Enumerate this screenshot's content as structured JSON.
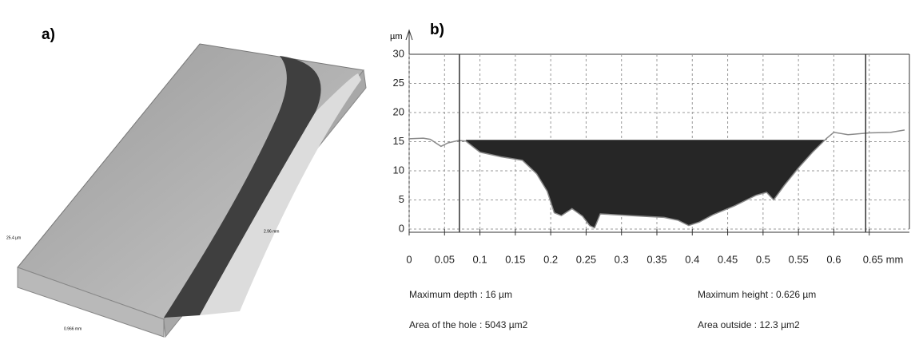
{
  "panel_a": {
    "label": "a)",
    "scale_labels": [
      "25.4 µm",
      "0.966 mm",
      "2.96 mm"
    ]
  },
  "chart_data": {
    "type": "line",
    "panel_label": "b)",
    "y_label": "µm",
    "series": [
      {
        "color": "#8a8a8a",
        "x": [
          0,
          0.02,
          0.03,
          0.045,
          0.055,
          0.07,
          0.08,
          0.1,
          0.13,
          0.16,
          0.18,
          0.195,
          0.205,
          0.215,
          0.23,
          0.245,
          0.255,
          0.262,
          0.27,
          0.3,
          0.33,
          0.36,
          0.38,
          0.395,
          0.41,
          0.43,
          0.46,
          0.49,
          0.505,
          0.515,
          0.53,
          0.55,
          0.57,
          0.59,
          0.6,
          0.62,
          0.65,
          0.68,
          0.7
        ],
        "values": [
          15.5,
          15.6,
          15.4,
          14.2,
          14.8,
          15.2,
          15.1,
          13.2,
          12.4,
          11.8,
          9.5,
          6.5,
          2.8,
          2.3,
          3.5,
          2.2,
          0.6,
          0.2,
          2.6,
          2.4,
          2.2,
          2,
          1.5,
          0.6,
          1.2,
          2.5,
          4,
          5.8,
          6.3,
          5,
          7.5,
          10.5,
          13.2,
          15.6,
          16.6,
          16.2,
          16.5,
          16.6,
          17
        ]
      }
    ],
    "hole_level": 15.3,
    "hole_range": [
      0.08,
      0.59
    ],
    "cursors": [
      0.071,
      0.645
    ],
    "xlim": [
      0,
      0.7
    ],
    "ylim": [
      0,
      30
    ],
    "xticks": [
      0,
      0.05,
      0.1,
      0.15,
      0.2,
      0.25,
      0.3,
      0.35,
      0.4,
      0.45,
      0.5,
      0.55,
      0.6,
      {
        "value": 0.65,
        "label": "0.65 mm"
      }
    ],
    "yticks": [
      0,
      5,
      10,
      15,
      20,
      25,
      30
    ],
    "grid": true,
    "annotations": [
      "Maximum depth : 16 µm",
      "Maximum height : 0.626 µm",
      "Area of the hole : 5043 µm2",
      "Area outside : 12.3 µm2"
    ]
  }
}
